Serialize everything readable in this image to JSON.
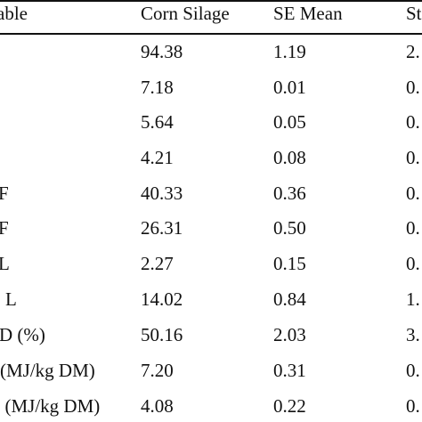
{
  "table": {
    "headers": [
      "able",
      "Corn Silage",
      "SE Mean",
      "St"
    ],
    "rows": [
      [
        "",
        "94.38",
        "1.19",
        "2."
      ],
      [
        "",
        "7.18",
        "0.01",
        "0."
      ],
      [
        "",
        "5.64",
        "0.05",
        "0."
      ],
      [
        "",
        "4.21",
        "0.08",
        "0."
      ],
      [
        "F",
        "40.33",
        "0.36",
        "0."
      ],
      [
        "F",
        "26.31",
        "0.50",
        "0."
      ],
      [
        "L",
        "2.27",
        "0.15",
        "0."
      ],
      [
        "L",
        "14.02",
        "0.84",
        "1."
      ],
      [
        "D (%)",
        "50.16",
        "2.03",
        "3."
      ],
      [
        "(MJ/kg DM)",
        "7.20",
        "0.31",
        "0."
      ],
      [
        ". (MJ/kg DM)",
        "4.08",
        "0.22",
        "0."
      ]
    ]
  }
}
